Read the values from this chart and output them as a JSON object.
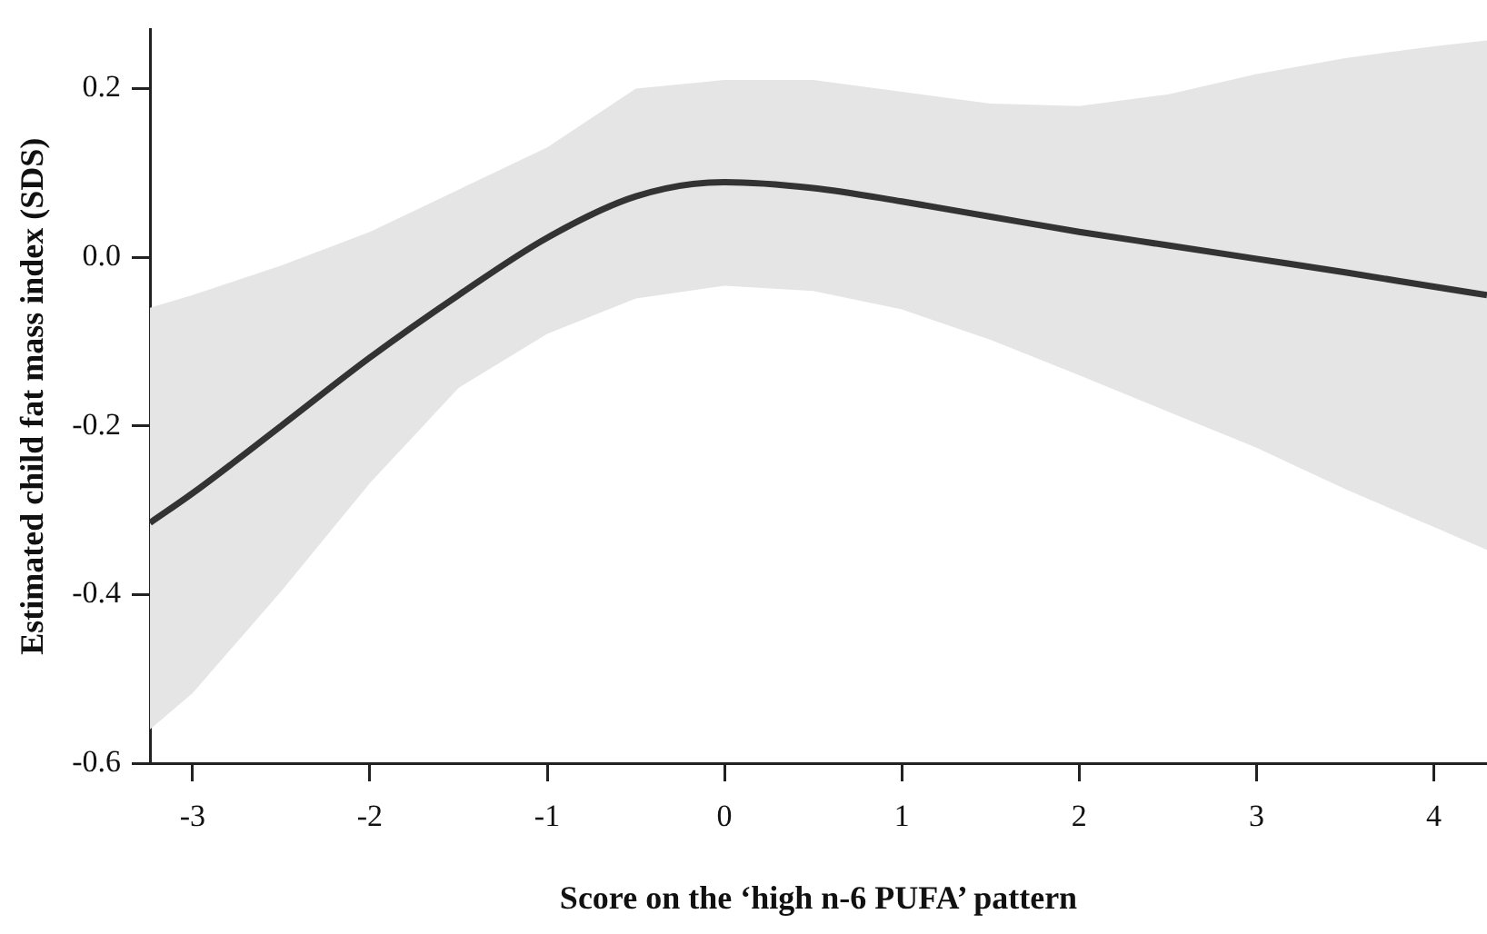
{
  "chart_data": {
    "type": "line",
    "xlabel": "Score on the ‘high n-6 PUFA’ pattern",
    "ylabel": "Estimated child fat mass index (SDS)",
    "x": [
      -3.24,
      -3,
      -2.5,
      -2,
      -1.5,
      -1,
      -0.5,
      0,
      0.5,
      1,
      1.5,
      2,
      2.5,
      3,
      3.5,
      4,
      4.3
    ],
    "series": [
      {
        "color": "#333333",
        "values": [
          -0.315,
          -0.28,
          -0.2,
          -0.119,
          -0.045,
          0.023,
          0.072,
          0.089,
          0.082,
          0.066,
          0.048,
          0.03,
          0.014,
          -0.002,
          -0.018,
          -0.035,
          -0.045
        ],
        "lower": [
          -0.56,
          -0.517,
          -0.396,
          -0.268,
          -0.155,
          -0.091,
          -0.049,
          -0.034,
          -0.04,
          -0.062,
          -0.098,
          -0.14,
          -0.183,
          -0.226,
          -0.275,
          -0.32,
          -0.347
        ],
        "upper": [
          -0.06,
          -0.045,
          -0.01,
          0.03,
          0.08,
          0.13,
          0.2,
          0.21,
          0.21,
          0.196,
          0.182,
          0.179,
          0.193,
          0.217,
          0.236,
          0.25,
          0.257
        ]
      }
    ],
    "xlim": [
      -3.24,
      4.3
    ],
    "ylim": [
      -0.6,
      0.27
    ],
    "xticks": [
      -3,
      -2,
      -1,
      0,
      1,
      2,
      3,
      4
    ],
    "yticks": [
      -0.6,
      -0.4,
      -0.2,
      {
        "value": 0,
        "label": "0.0"
      },
      0.2
    ],
    "grid": false,
    "legend": false,
    "marker": "none",
    "line_style": "solid"
  }
}
